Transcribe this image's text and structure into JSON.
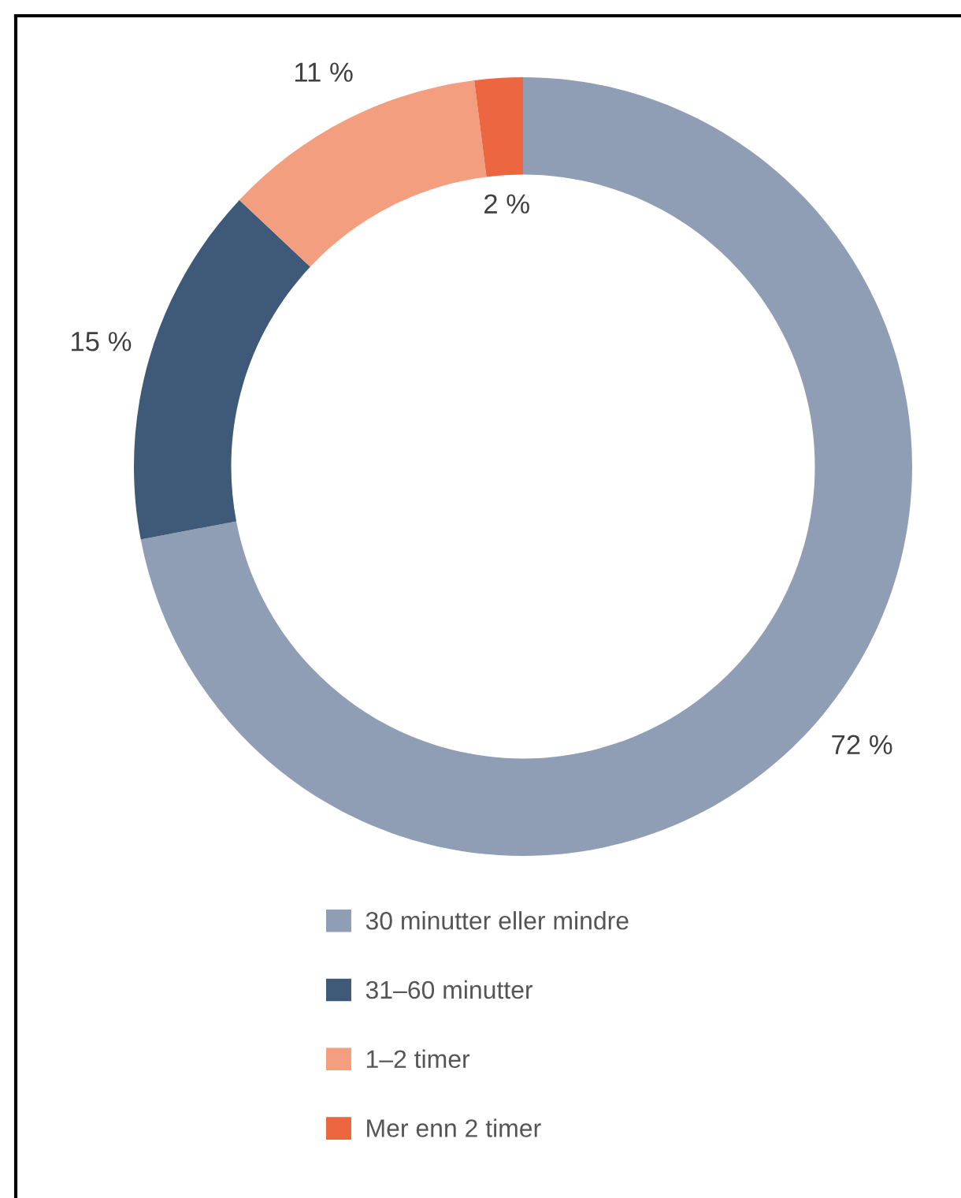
{
  "chart_data": {
    "type": "donut",
    "categories": [
      "30 minutter eller mindre",
      "31–60 minutter",
      "1–2 timer",
      "Mer enn 2 timer"
    ],
    "values": [
      72,
      15,
      11,
      2
    ],
    "colors": [
      "#8f9eb5",
      "#3e5a78",
      "#f39e7e",
      "#ec6642"
    ],
    "value_labels": [
      "72 %",
      "15 %",
      "11 %",
      "2 %"
    ],
    "legend": "bottom"
  }
}
